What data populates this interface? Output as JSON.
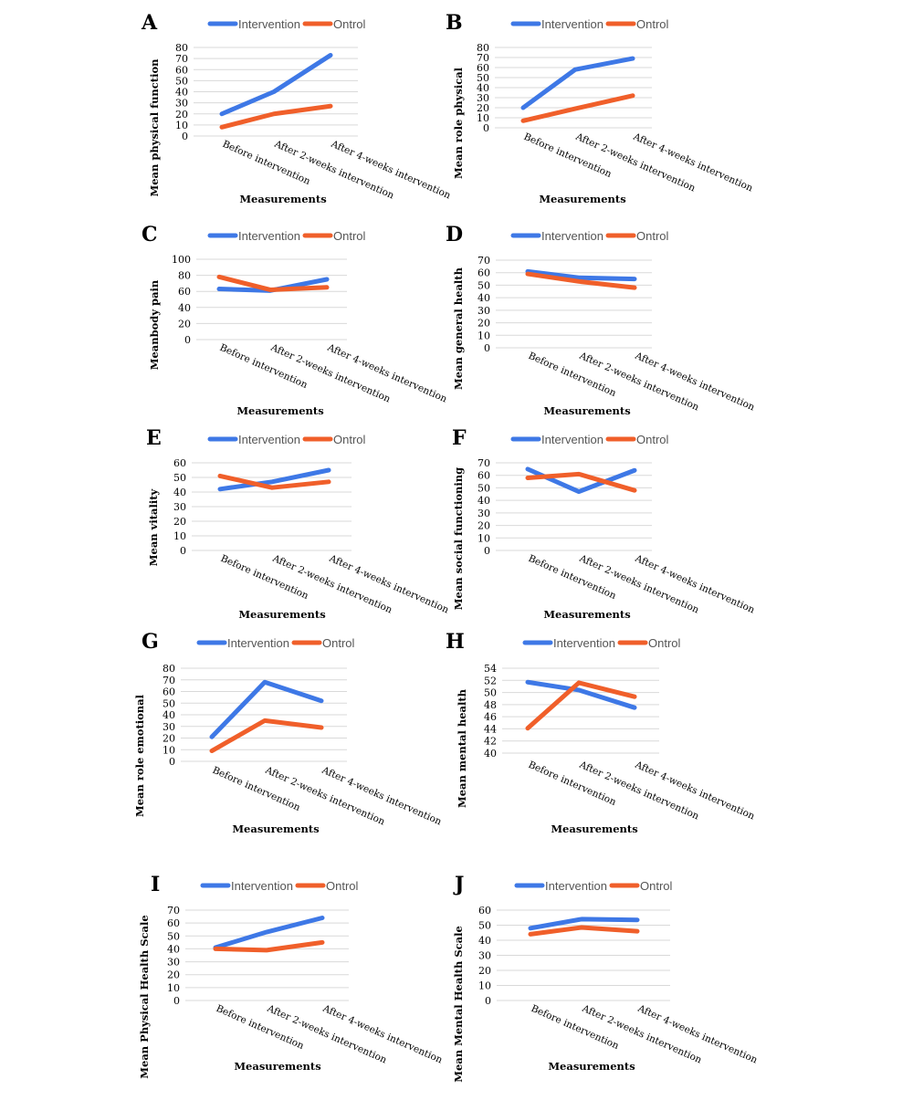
{
  "colors": {
    "intervention": "#3e78e6",
    "control": "#f05f2a"
  },
  "chart_data": [
    {
      "panel": "A",
      "type": "line",
      "categories": [
        "Before intervention",
        "After 2-weeks intervention",
        "After 4-weeks intervention"
      ],
      "series": [
        {
          "name": "Intervention",
          "values": [
            20,
            40,
            73
          ]
        },
        {
          "name": "Ontrol",
          "values": [
            8,
            20,
            27
          ]
        }
      ],
      "ylabel": "Mean physical function",
      "xlabel": "Measurements",
      "ylim": [
        0,
        80
      ],
      "yticks": [
        0,
        10,
        20,
        30,
        40,
        50,
        60,
        70,
        80
      ],
      "grid": true,
      "legend": "top"
    },
    {
      "panel": "B",
      "type": "line",
      "categories": [
        "Before intervention",
        "After 2-weeks intervention",
        "After 4-weeks intervention"
      ],
      "series": [
        {
          "name": "Intervention",
          "values": [
            20,
            58,
            69
          ]
        },
        {
          "name": "Ontrol",
          "values": [
            7,
            19,
            32
          ]
        }
      ],
      "ylabel": "Mean role physical",
      "xlabel": "Measurements",
      "ylim": [
        0,
        80
      ],
      "yticks": [
        0,
        10,
        20,
        30,
        40,
        50,
        60,
        70,
        80
      ],
      "grid": true,
      "legend": "top"
    },
    {
      "panel": "C",
      "type": "line",
      "categories": [
        "Before intervention",
        "After 2-weeks intervention",
        "After 4-weeks intervention"
      ],
      "series": [
        {
          "name": "Intervention",
          "values": [
            63,
            61,
            75
          ]
        },
        {
          "name": "Ontrol",
          "values": [
            78,
            62,
            65
          ]
        }
      ],
      "ylabel": "Meanbody pain",
      "xlabel": "Measurements",
      "ylim": [
        0,
        100
      ],
      "yticks": [
        0,
        20,
        40,
        60,
        80,
        100
      ],
      "grid": true,
      "legend": "top"
    },
    {
      "panel": "D",
      "type": "line",
      "categories": [
        "Before intervention",
        "After 2-weeks intervention",
        "After 4-weeks intervention"
      ],
      "series": [
        {
          "name": "Intervention",
          "values": [
            61,
            56,
            55
          ]
        },
        {
          "name": "Ontrol",
          "values": [
            59,
            53,
            48
          ]
        }
      ],
      "ylabel": "Mean general health",
      "xlabel": "Measurements",
      "ylim": [
        0,
        70
      ],
      "yticks": [
        0,
        10,
        20,
        30,
        40,
        50,
        60,
        70
      ],
      "grid": true,
      "legend": "top"
    },
    {
      "panel": "E",
      "type": "line",
      "categories": [
        "Before intervention",
        "After 2-weeks intervention",
        "After 4-weeks intervention"
      ],
      "series": [
        {
          "name": "Intervention",
          "values": [
            42,
            47,
            55
          ]
        },
        {
          "name": "Ontrol",
          "values": [
            51,
            43,
            47
          ]
        }
      ],
      "ylabel": "Mean vitality",
      "xlabel": "Measurements",
      "ylim": [
        0,
        60
      ],
      "yticks": [
        0,
        10,
        20,
        30,
        40,
        50,
        60
      ],
      "grid": true,
      "legend": "top"
    },
    {
      "panel": "F",
      "type": "line",
      "categories": [
        "Before intervention",
        "After 2-weeks intervention",
        "After 4-weeks intervention"
      ],
      "series": [
        {
          "name": "Intervention",
          "values": [
            65,
            47,
            64
          ]
        },
        {
          "name": "Ontrol",
          "values": [
            58,
            61,
            48
          ]
        }
      ],
      "ylabel": "Mean social functioning",
      "xlabel": "Measurements",
      "ylim": [
        0,
        70
      ],
      "yticks": [
        0,
        10,
        20,
        30,
        40,
        50,
        60,
        70
      ],
      "grid": true,
      "legend": "top"
    },
    {
      "panel": "G",
      "type": "line",
      "categories": [
        "Before intervention",
        "After 2-weeks intervention",
        "After 4-weeks intervention"
      ],
      "series": [
        {
          "name": "Intervention",
          "values": [
            21,
            68,
            52
          ]
        },
        {
          "name": "Ontrol",
          "values": [
            9,
            35,
            29
          ]
        }
      ],
      "ylabel": "Mean role emotional",
      "xlabel": "Measurements",
      "ylim": [
        0,
        80
      ],
      "yticks": [
        0,
        10,
        20,
        30,
        40,
        50,
        60,
        70,
        80
      ],
      "grid": true,
      "legend": "top"
    },
    {
      "panel": "H",
      "type": "line",
      "categories": [
        "Before intervention",
        "After 2-weeks intervention",
        "After 4-weeks intervention"
      ],
      "series": [
        {
          "name": "Intervention",
          "values": [
            51.7,
            50.4,
            47.5
          ]
        },
        {
          "name": "Ontrol",
          "values": [
            44.1,
            51.6,
            49.3
          ]
        }
      ],
      "ylabel": "Mean mental health",
      "xlabel": "Measurements",
      "ylim": [
        40,
        54
      ],
      "yticks": [
        40,
        42,
        44,
        46,
        48,
        50,
        52,
        54
      ],
      "grid": true,
      "legend": "top"
    },
    {
      "panel": "I",
      "type": "line",
      "categories": [
        "Before intervention",
        "After 2-weeks intervention",
        "After 4-weeks intervention"
      ],
      "series": [
        {
          "name": "Intervention",
          "values": [
            41,
            53,
            64
          ]
        },
        {
          "name": "Ontrol",
          "values": [
            40,
            39,
            45
          ]
        }
      ],
      "ylabel": "Mean Physical Health Scale",
      "xlabel": "Measurements",
      "ylim": [
        0,
        70
      ],
      "yticks": [
        0,
        10,
        20,
        30,
        40,
        50,
        60,
        70
      ],
      "grid": true,
      "legend": "top"
    },
    {
      "panel": "J",
      "type": "line",
      "categories": [
        "Before intervention",
        "After 2-weeks intervention",
        "After 4-weeks intervention"
      ],
      "series": [
        {
          "name": "Intervention",
          "values": [
            48,
            54,
            53.5
          ]
        },
        {
          "name": "Ontrol",
          "values": [
            44,
            48.5,
            46
          ]
        }
      ],
      "ylabel": "Mean Mental Health Scale",
      "xlabel": "Measurements",
      "ylim": [
        0,
        60
      ],
      "yticks": [
        0,
        10,
        20,
        30,
        40,
        50,
        60
      ],
      "grid": true,
      "legend": "top"
    }
  ]
}
